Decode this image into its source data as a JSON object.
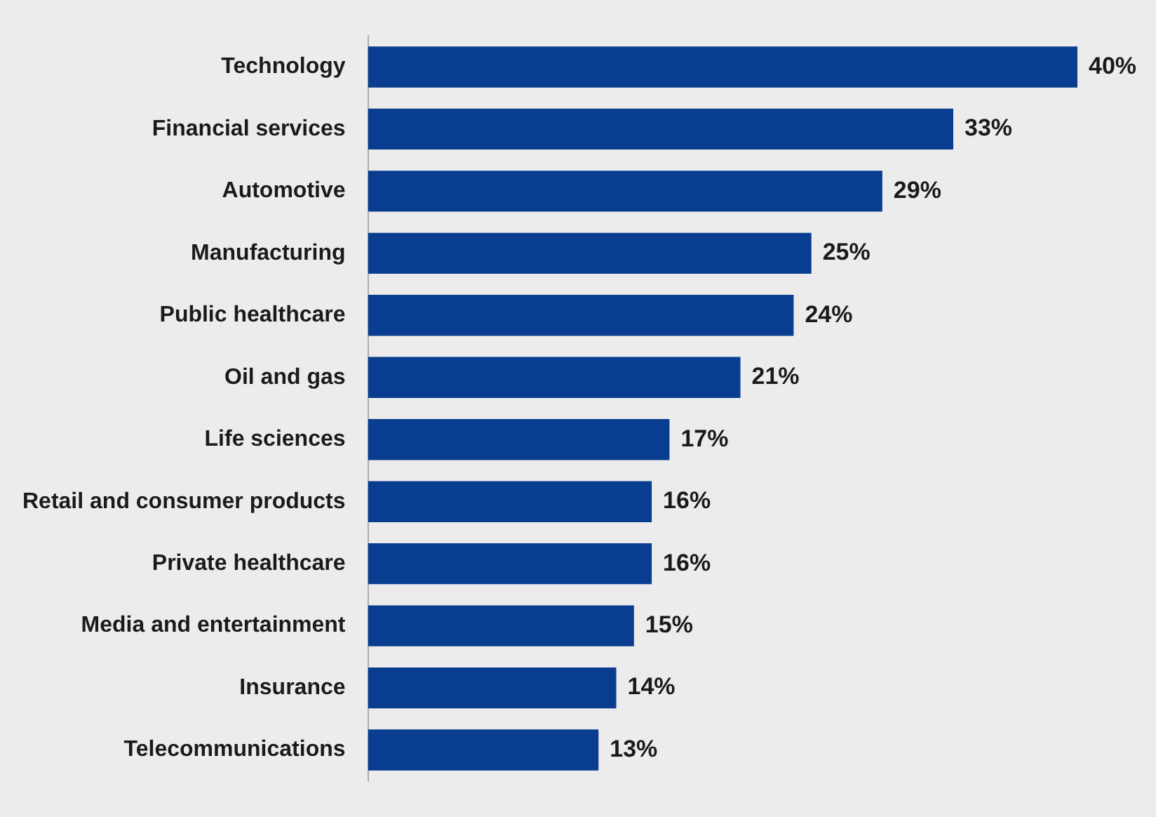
{
  "chart_data": {
    "type": "bar",
    "orientation": "horizontal",
    "categories": [
      "Technology",
      "Financial services",
      "Automotive",
      "Manufacturing",
      "Public healthcare",
      "Oil and gas",
      "Life sciences",
      "Retail and consumer products",
      "Private healthcare",
      "Media and entertainment",
      "Insurance",
      "Telecommunications"
    ],
    "values": [
      40,
      33,
      29,
      25,
      24,
      21,
      17,
      16,
      16,
      15,
      14,
      13
    ],
    "value_labels": [
      "40%",
      "33%",
      "29%",
      "25%",
      "24%",
      "21%",
      "17%",
      "16%",
      "16%",
      "15%",
      "14%",
      "13%"
    ],
    "color": "#083d8f"
  }
}
